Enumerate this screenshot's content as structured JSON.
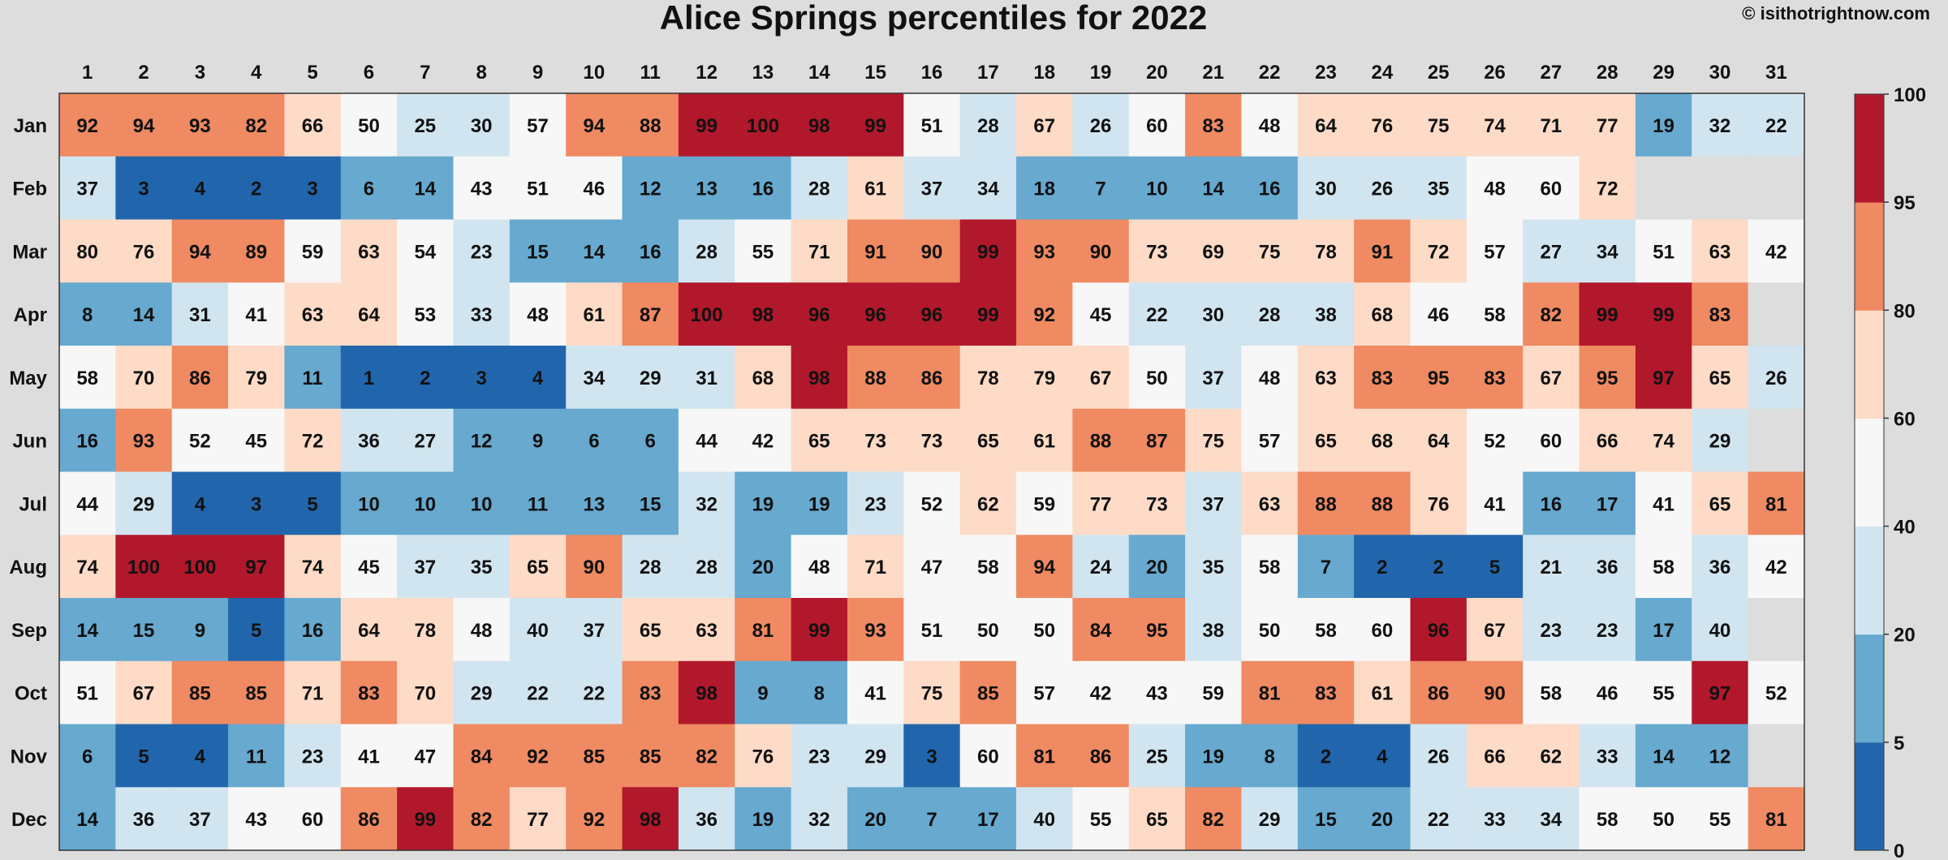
{
  "chart_data": {
    "type": "heatmap",
    "title": "Alice Springs percentiles for 2022",
    "credit": "© isithotrightnow.com",
    "x_categories": [
      "1",
      "2",
      "3",
      "4",
      "5",
      "6",
      "7",
      "8",
      "9",
      "10",
      "11",
      "12",
      "13",
      "14",
      "15",
      "16",
      "17",
      "18",
      "19",
      "20",
      "21",
      "22",
      "23",
      "24",
      "25",
      "26",
      "27",
      "28",
      "29",
      "30",
      "31"
    ],
    "y_categories": [
      "Jan",
      "Feb",
      "Mar",
      "Apr",
      "May",
      "Jun",
      "Jul",
      "Aug",
      "Sep",
      "Oct",
      "Nov",
      "Dec"
    ],
    "values": [
      [
        92,
        94,
        93,
        82,
        66,
        50,
        25,
        30,
        57,
        94,
        88,
        99,
        100,
        98,
        99,
        51,
        28,
        67,
        26,
        60,
        83,
        48,
        64,
        76,
        75,
        74,
        71,
        77,
        19,
        32,
        22
      ],
      [
        37,
        3,
        4,
        2,
        3,
        6,
        14,
        43,
        51,
        46,
        12,
        13,
        16,
        28,
        61,
        37,
        34,
        18,
        7,
        10,
        14,
        16,
        30,
        26,
        35,
        48,
        60,
        72,
        null,
        null,
        null
      ],
      [
        80,
        76,
        94,
        89,
        59,
        63,
        54,
        23,
        15,
        14,
        16,
        28,
        55,
        71,
        91,
        90,
        99,
        93,
        90,
        73,
        69,
        75,
        78,
        91,
        72,
        57,
        27,
        34,
        51,
        63,
        42
      ],
      [
        8,
        14,
        31,
        41,
        63,
        64,
        53,
        33,
        48,
        61,
        87,
        100,
        98,
        96,
        96,
        96,
        99,
        92,
        45,
        22,
        30,
        28,
        38,
        68,
        46,
        58,
        82,
        99,
        99,
        83,
        null
      ],
      [
        58,
        70,
        86,
        79,
        11,
        1,
        2,
        3,
        4,
        34,
        29,
        31,
        68,
        98,
        88,
        86,
        78,
        79,
        67,
        50,
        37,
        48,
        63,
        83,
        95,
        83,
        67,
        95,
        97,
        65,
        26
      ],
      [
        16,
        93,
        52,
        45,
        72,
        36,
        27,
        12,
        9,
        6,
        6,
        44,
        42,
        65,
        73,
        73,
        65,
        61,
        88,
        87,
        75,
        57,
        65,
        68,
        64,
        52,
        60,
        66,
        74,
        29,
        null
      ],
      [
        44,
        29,
        4,
        3,
        5,
        10,
        10,
        10,
        11,
        13,
        15,
        32,
        19,
        19,
        23,
        52,
        62,
        59,
        77,
        73,
        37,
        63,
        88,
        88,
        76,
        41,
        16,
        17,
        41,
        65,
        81
      ],
      [
        74,
        100,
        100,
        97,
        74,
        45,
        37,
        35,
        65,
        90,
        28,
        28,
        20,
        48,
        71,
        47,
        58,
        94,
        24,
        20,
        35,
        58,
        7,
        2,
        2,
        5,
        21,
        36,
        58,
        36,
        42
      ],
      [
        14,
        15,
        9,
        5,
        16,
        64,
        78,
        48,
        40,
        37,
        65,
        63,
        81,
        99,
        93,
        51,
        50,
        50,
        84,
        95,
        38,
        50,
        58,
        60,
        96,
        67,
        23,
        23,
        17,
        40,
        null
      ],
      [
        51,
        67,
        85,
        85,
        71,
        83,
        70,
        29,
        22,
        22,
        83,
        98,
        9,
        8,
        41,
        75,
        85,
        57,
        42,
        43,
        59,
        81,
        83,
        61,
        86,
        90,
        58,
        46,
        55,
        97,
        52
      ],
      [
        6,
        5,
        4,
        11,
        23,
        41,
        47,
        84,
        92,
        85,
        85,
        82,
        76,
        23,
        29,
        3,
        60,
        81,
        86,
        25,
        19,
        8,
        2,
        4,
        26,
        66,
        62,
        33,
        14,
        12,
        null
      ],
      [
        14,
        36,
        37,
        43,
        60,
        86,
        99,
        82,
        77,
        92,
        98,
        36,
        19,
        32,
        20,
        7,
        17,
        40,
        55,
        65,
        82,
        29,
        15,
        20,
        22,
        33,
        34,
        58,
        50,
        55,
        81
      ]
    ],
    "value_range": [
      0,
      100
    ],
    "colorbar": {
      "ticks": [
        "0",
        "5",
        "20",
        "40",
        "60",
        "80",
        "95",
        "100"
      ],
      "bins": [
        {
          "min": 0,
          "max": 5,
          "color": "#2166ac"
        },
        {
          "min": 5,
          "max": 20,
          "color": "#67a9cf"
        },
        {
          "min": 20,
          "max": 40,
          "color": "#d1e5f0"
        },
        {
          "min": 40,
          "max": 60,
          "color": "#f7f7f7"
        },
        {
          "min": 60,
          "max": 80,
          "color": "#fddbc7"
        },
        {
          "min": 80,
          "max": 95,
          "color": "#ef8a62"
        },
        {
          "min": 95,
          "max": 100,
          "color": "#b2182b"
        }
      ]
    },
    "missing_color": "#dddddd",
    "legend": "right"
  }
}
